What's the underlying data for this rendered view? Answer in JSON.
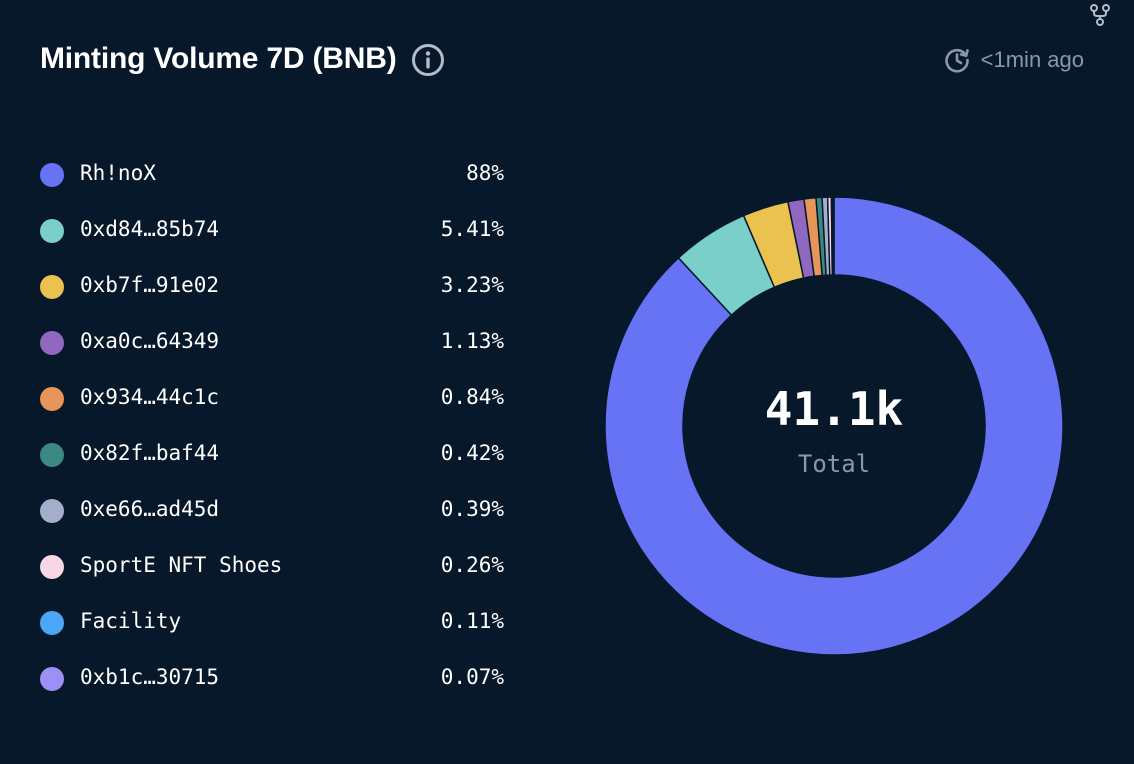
{
  "header": {
    "title": "Minting Volume 7D (BNB)",
    "info_icon": "info-icon",
    "updated": "<1min ago",
    "clock_icon": "history-clock-icon",
    "fork_icon": "fork-icon"
  },
  "chart_data": {
    "type": "pie",
    "title": "Minting Volume 7D (BNB)",
    "center_value": "41.1k",
    "center_label": "Total",
    "legend_position": "left",
    "categories": [
      "Rh!noX",
      "0xd84…85b74",
      "0xb7f…91e02",
      "0xa0c…64349",
      "0x934…44c1c",
      "0x82f…baf44",
      "0xe66…ad45d",
      "SportE NFT Shoes",
      "Facility",
      "0xb1c…30715"
    ],
    "values": [
      88,
      5.41,
      3.23,
      1.13,
      0.84,
      0.42,
      0.39,
      0.26,
      0.11,
      0.07
    ],
    "value_labels": [
      "88%",
      "5.41%",
      "3.23%",
      "1.13%",
      "0.84%",
      "0.42%",
      "0.39%",
      "0.26%",
      "0.11%",
      "0.07%"
    ],
    "colors": [
      "#6673f5",
      "#7acfc8",
      "#ebc14f",
      "#9068c0",
      "#e8955a",
      "#3c8983",
      "#a5afcb",
      "#f6d7e3",
      "#4ba7f5",
      "#9d90f4"
    ]
  }
}
